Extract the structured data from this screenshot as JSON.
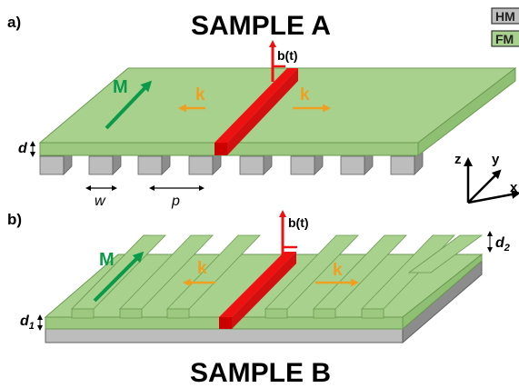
{
  "colors": {
    "fm": "#a9d18e",
    "fm_side": "#8fbf72",
    "fm_edge": "#6a9a50",
    "hm": "#b8b8b8",
    "hm_side": "#8c8c8c",
    "hm_edge": "#606060",
    "field": "#ee1111",
    "k_arrow": "#f0a020",
    "m_arrow": "#0a9a4a"
  },
  "legend": {
    "items": [
      {
        "label": "HM",
        "color": "#bfbfbf"
      },
      {
        "label": "FM",
        "color": "#a9d18e"
      }
    ]
  },
  "panel_a": {
    "tag": "a)",
    "title": "SAMPLE A",
    "magnetization_label": "M",
    "field_label": "b(t)",
    "k_left_label": "k",
    "k_right_label": "k",
    "thickness_label": "d",
    "width_label": "w",
    "period_label": "p"
  },
  "panel_b": {
    "tag": "b)",
    "title": "SAMPLE B",
    "magnetization_label": "M",
    "field_label": "b(t)",
    "k_left_label": "k",
    "k_right_label": "k",
    "thickness1_label": "d",
    "thickness1_sub": "1",
    "thickness2_label": "d",
    "thickness2_sub": "2"
  },
  "axes": {
    "x_label": "x",
    "y_label": "y",
    "z_label": "z"
  }
}
